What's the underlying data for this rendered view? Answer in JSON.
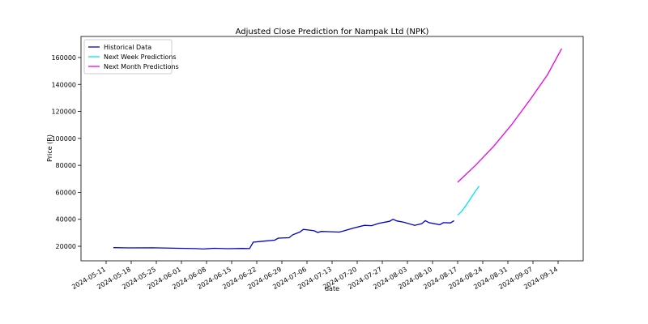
{
  "chart_data": {
    "type": "line",
    "title": "Adjusted Close Prediction for Nampak Ltd (NPK)",
    "x_label": "date",
    "y_label": "Price (R)",
    "xlim": [
      "2024-05-04",
      "2024-09-21"
    ],
    "xticks": [
      "2024-05-11",
      "2024-05-18",
      "2024-05-25",
      "2024-06-01",
      "2024-06-08",
      "2024-06-15",
      "2024-06-22",
      "2024-06-29",
      "2024-07-06",
      "2024-07-13",
      "2024-07-20",
      "2024-07-27",
      "2024-08-03",
      "2024-08-10",
      "2024-08-17",
      "2024-08-24",
      "2024-08-31",
      "2024-09-07",
      "2024-09-14"
    ],
    "ylim": [
      9200,
      175600
    ],
    "yticks": [
      20000,
      40000,
      60000,
      80000,
      100000,
      120000,
      140000,
      160000
    ],
    "legend": "upper left",
    "series": [
      {
        "name": "Historical Data",
        "color": "#0000cc",
        "x": [
          "2024-05-13",
          "2024-05-17",
          "2024-05-24",
          "2024-05-31",
          "2024-06-05",
          "2024-06-07",
          "2024-06-10",
          "2024-06-14",
          "2024-06-18",
          "2024-06-20",
          "2024-06-21",
          "2024-06-24",
          "2024-06-27",
          "2024-06-28",
          "2024-07-01",
          "2024-07-02",
          "2024-07-04",
          "2024-07-05",
          "2024-07-08",
          "2024-07-09",
          "2024-07-10",
          "2024-07-12",
          "2024-07-15",
          "2024-07-16",
          "2024-07-19",
          "2024-07-22",
          "2024-07-24",
          "2024-07-26",
          "2024-07-29",
          "2024-07-30",
          "2024-07-31",
          "2024-08-02",
          "2024-08-05",
          "2024-08-07",
          "2024-08-08",
          "2024-08-09",
          "2024-08-12",
          "2024-08-13",
          "2024-08-15",
          "2024-08-16"
        ],
        "values": [
          19000,
          18800,
          18900,
          18500,
          18300,
          18000,
          18500,
          18200,
          18400,
          18300,
          23000,
          23800,
          24500,
          26000,
          26300,
          28500,
          30500,
          32500,
          31500,
          30200,
          31000,
          30800,
          30500,
          31200,
          33500,
          35500,
          35300,
          37000,
          38500,
          40000,
          38800,
          37800,
          35500,
          36800,
          39000,
          37500,
          36000,
          37500,
          37300,
          39000
        ]
      },
      {
        "name": "Next Week Predictions",
        "color": "#00e5ee",
        "x": [
          "2024-08-17",
          "2024-08-18",
          "2024-08-19",
          "2024-08-20",
          "2024-08-21",
          "2024-08-22",
          "2024-08-23"
        ],
        "values": [
          43000,
          45500,
          49000,
          53000,
          57000,
          61000,
          64500
        ]
      },
      {
        "name": "Next Month Predictions",
        "color": "#ee00ee",
        "x": [
          "2024-08-17",
          "2024-08-22",
          "2024-08-27",
          "2024-09-01",
          "2024-09-06",
          "2024-09-11",
          "2024-09-15"
        ],
        "values": [
          67500,
          80000,
          94000,
          110000,
          128000,
          147000,
          166500
        ]
      }
    ]
  }
}
